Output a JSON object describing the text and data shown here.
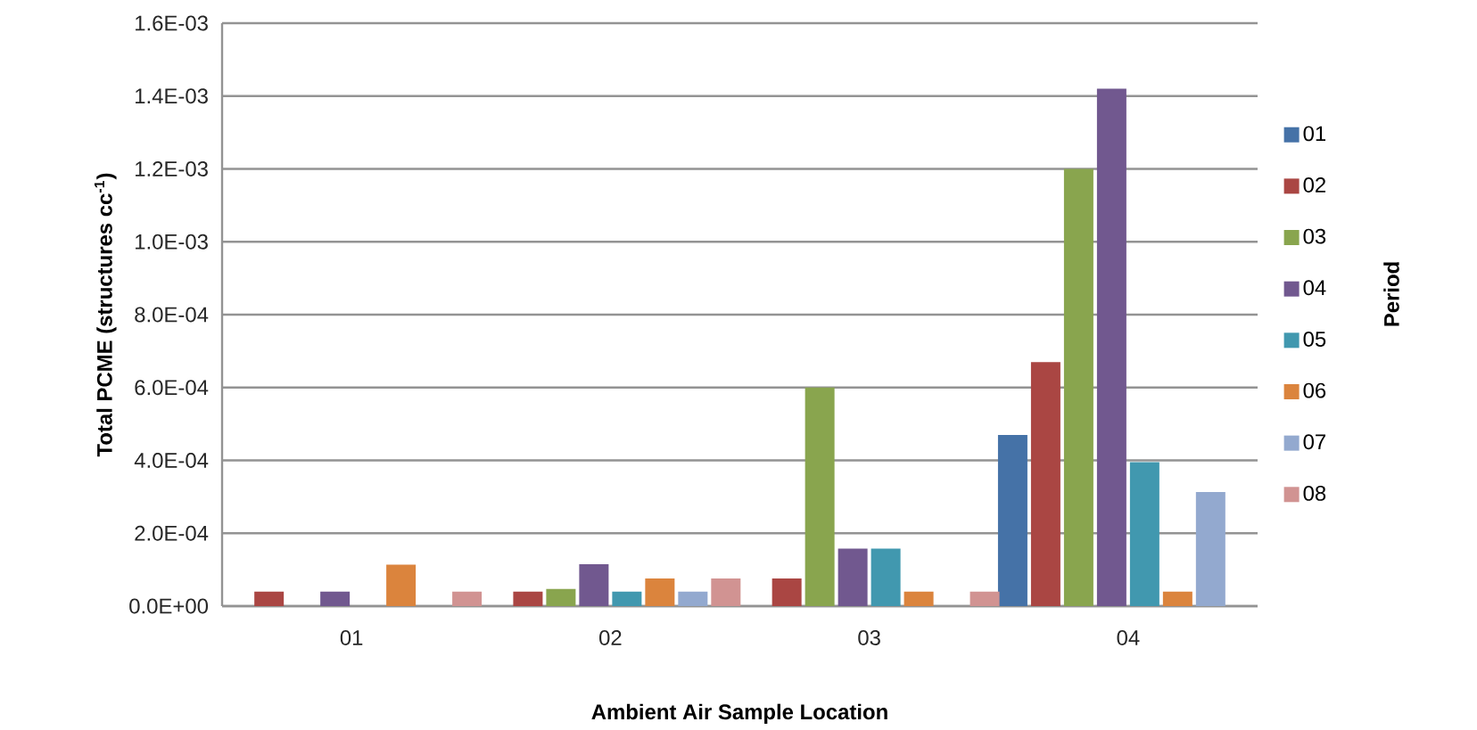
{
  "chart_data": {
    "type": "bar",
    "xlabel": "Ambient Air Sample Location",
    "ylabel": "Total PCME (structures cc$^{-1}$)",
    "legend_title": "Period",
    "categories": [
      "01",
      "02",
      "03",
      "04"
    ],
    "series": [
      {
        "name": "01",
        "color": "#4572a7",
        "values": [
          null,
          null,
          null,
          0.00047
        ]
      },
      {
        "name": "02",
        "color": "#aa4643",
        "values": [
          4e-05,
          4e-05,
          7.6e-05,
          0.00067
        ]
      },
      {
        "name": "03",
        "color": "#89a54e",
        "values": [
          null,
          4.7e-05,
          0.0006,
          0.0012
        ]
      },
      {
        "name": "04",
        "color": "#71588f",
        "values": [
          4e-05,
          0.000115,
          0.000158,
          0.00142
        ]
      },
      {
        "name": "05",
        "color": "#4198af",
        "values": [
          null,
          4e-05,
          0.000158,
          0.000395
        ]
      },
      {
        "name": "06",
        "color": "#db843d",
        "values": [
          0.000114,
          7.6e-05,
          4e-05,
          4e-05
        ]
      },
      {
        "name": "07",
        "color": "#93a9cf",
        "values": [
          null,
          4e-05,
          null,
          0.000313
        ]
      },
      {
        "name": "08",
        "color": "#d19392",
        "values": [
          4e-05,
          7.6e-05,
          4e-05,
          null
        ]
      }
    ],
    "ylim": [
      0,
      0.0016
    ],
    "yticks": [
      {
        "value": 0,
        "label": "0.0E+00"
      },
      {
        "value": 0.0002,
        "label": "2.0E-04"
      },
      {
        "value": 0.0004,
        "label": "4.0E-04"
      },
      {
        "value": 0.0006,
        "label": "6.0E-04"
      },
      {
        "value": 0.0008,
        "label": "8.0E-04"
      },
      {
        "value": 0.001,
        "label": "1.0E-03"
      },
      {
        "value": 0.0012,
        "label": "1.2E-03"
      },
      {
        "value": 0.0014,
        "label": "1.4E-03"
      },
      {
        "value": 0.0016,
        "label": "1.6E-03"
      }
    ],
    "grid": "y",
    "legend": "right"
  }
}
